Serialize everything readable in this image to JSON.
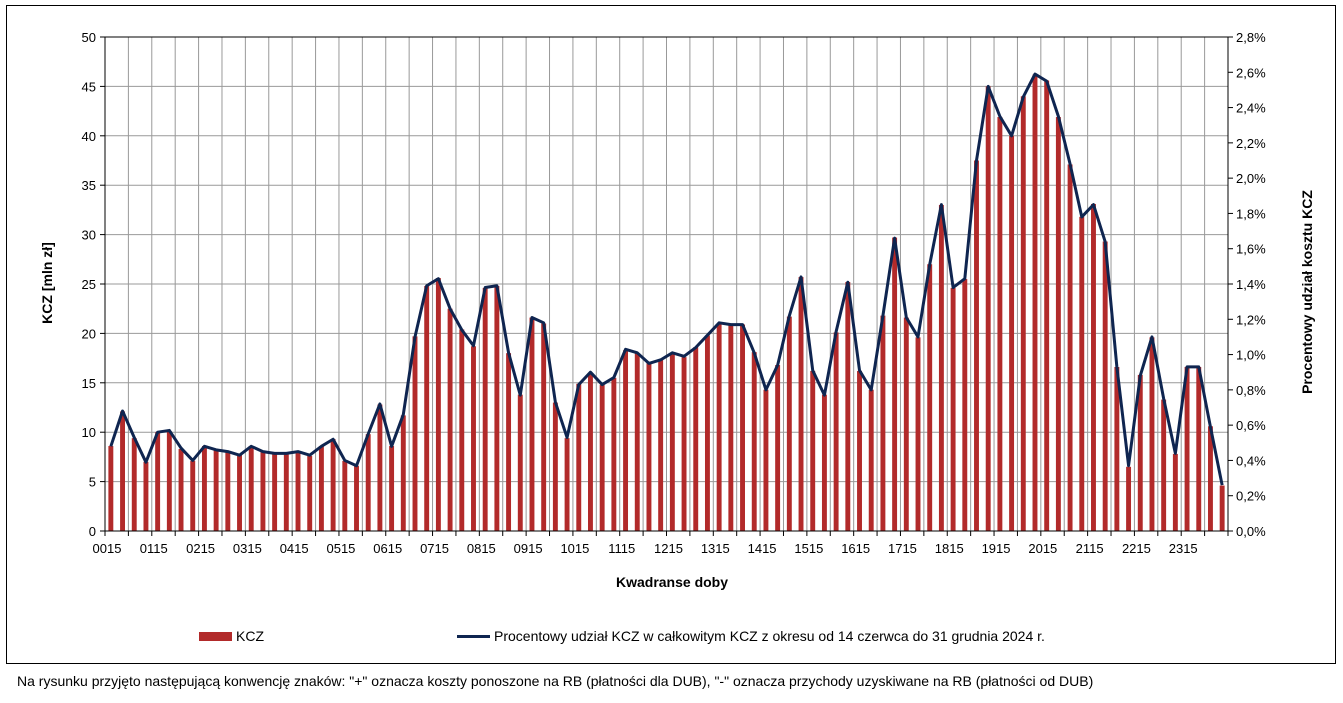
{
  "chart_data": {
    "type": "bar",
    "xlabel": "Kwadranse doby",
    "ylabel_left": "KCZ [mln zł]",
    "ylabel_right": "Procentowy udział kosztu KCZ",
    "ylim_left": [
      0,
      50
    ],
    "ylim_right": [
      0,
      2.8
    ],
    "yticks_left": [
      "0",
      "5",
      "10",
      "15",
      "20",
      "25",
      "30",
      "35",
      "40",
      "45",
      "50"
    ],
    "yticks_right": [
      "0,0%",
      "0,2%",
      "0,4%",
      "0,6%",
      "0,8%",
      "1,0%",
      "1,2%",
      "1,4%",
      "1,6%",
      "1,8%",
      "2,0%",
      "2,2%",
      "2,4%",
      "2,6%",
      "2,8%"
    ],
    "x_ticks": [
      "0015",
      "0115",
      "0215",
      "0315",
      "0415",
      "0515",
      "0615",
      "0715",
      "0815",
      "0915",
      "1015",
      "1115",
      "1215",
      "1315",
      "1415",
      "1515",
      "1615",
      "1715",
      "1815",
      "1915",
      "2015",
      "2115",
      "2215",
      "2315"
    ],
    "grid": true,
    "legend_position": "bottom",
    "colors": {
      "bar": "#b22a2a",
      "line": "#0f2550",
      "grid": "#999999"
    },
    "series": [
      {
        "name": "KCZ",
        "type": "bar",
        "axis": "left",
        "values": [
          8.6,
          12.1,
          9.4,
          7.0,
          10.0,
          10.1,
          8.3,
          7.1,
          8.6,
          8.3,
          8.0,
          7.7,
          8.6,
          8.1,
          7.8,
          7.9,
          8.1,
          7.6,
          8.6,
          9.3,
          7.1,
          6.6,
          9.8,
          12.8,
          8.6,
          11.7,
          19.7,
          24.8,
          25.6,
          22.5,
          20.4,
          18.7,
          24.6,
          24.8,
          18.0,
          13.8,
          21.6,
          21.0,
          13.0,
          9.4,
          14.9,
          16.0,
          14.8,
          15.5,
          18.3,
          18.0,
          17.0,
          17.3,
          18.0,
          17.6,
          18.6,
          19.8,
          21.0,
          20.8,
          20.9,
          18.1,
          14.3,
          16.8,
          21.7,
          25.7,
          16.2,
          13.8,
          20.1,
          25.2,
          16.2,
          14.3,
          21.8,
          29.7,
          21.6,
          19.6,
          27.0,
          33.0,
          24.6,
          25.5,
          37.5,
          45.0,
          41.9,
          40.0,
          44.0,
          46.2,
          45.6,
          41.9,
          37.1,
          31.8,
          33.1,
          29.3,
          16.6,
          6.5,
          15.8,
          19.6,
          13.3,
          7.8,
          16.6,
          16.6,
          10.6,
          4.6
        ]
      },
      {
        "name": "Procentowy udział KCZ w całkowitym KCZ z okresu od 14 czerwca do 31 grudnia 2024 r.",
        "type": "line",
        "axis": "right",
        "values": [
          0.48,
          0.68,
          0.53,
          0.39,
          0.56,
          0.57,
          0.47,
          0.4,
          0.48,
          0.46,
          0.45,
          0.43,
          0.48,
          0.45,
          0.44,
          0.44,
          0.45,
          0.43,
          0.48,
          0.52,
          0.4,
          0.37,
          0.55,
          0.72,
          0.48,
          0.66,
          1.1,
          1.39,
          1.43,
          1.26,
          1.14,
          1.05,
          1.38,
          1.39,
          1.01,
          0.77,
          1.21,
          1.18,
          0.73,
          0.53,
          0.83,
          0.9,
          0.83,
          0.87,
          1.03,
          1.01,
          0.95,
          0.97,
          1.01,
          0.99,
          1.04,
          1.11,
          1.18,
          1.17,
          1.17,
          1.01,
          0.8,
          0.94,
          1.22,
          1.44,
          0.91,
          0.77,
          1.13,
          1.41,
          0.91,
          0.8,
          1.22,
          1.66,
          1.21,
          1.1,
          1.51,
          1.85,
          1.38,
          1.43,
          2.1,
          2.52,
          2.35,
          2.24,
          2.46,
          2.59,
          2.55,
          2.35,
          2.08,
          1.78,
          1.85,
          1.64,
          0.93,
          0.37,
          0.88,
          1.1,
          0.75,
          0.44,
          0.93,
          0.93,
          0.59,
          0.26
        ]
      }
    ]
  },
  "legend": {
    "bar_label": "KCZ",
    "line_label": "Procentowy udział KCZ w całkowitym KCZ z okresu od 14 czerwca do 31 grudnia 2024 r."
  },
  "footnote": "Na rysunku przyjęto następującą konwencję znaków: \"+\" oznacza koszty ponoszone na RB (płatności dla DUB), \"-\" oznacza przychody uzyskiwane na RB (płatności od DUB)"
}
